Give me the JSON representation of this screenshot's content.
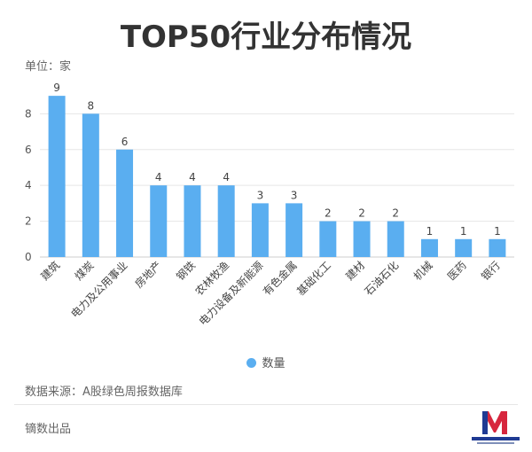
{
  "chart_data": {
    "type": "bar",
    "title": "TOP50行业分布情况",
    "unit_label": "单位：家",
    "categories": [
      "建筑",
      "煤炭",
      "电力及公用事业",
      "房地产",
      "钢铁",
      "农林牧渔",
      "电力设备及新能源",
      "有色金属",
      "基础化工",
      "建材",
      "石油石化",
      "机械",
      "医药",
      "银行"
    ],
    "series": [
      {
        "name": "数量",
        "values": [
          9,
          8,
          6,
          4,
          4,
          4,
          3,
          3,
          2,
          2,
          2,
          1,
          1,
          1
        ]
      }
    ],
    "yticks": [
      0,
      2,
      4,
      6,
      8
    ],
    "ylim": [
      0,
      9.6
    ],
    "xlabel": "",
    "ylabel": "",
    "grid": true,
    "legend_position": "bottom"
  },
  "colors": {
    "bar": "#5aaef0",
    "grid": "#e6e6e6",
    "axis": "#cccccc"
  },
  "footer": {
    "source": "数据来源：A股绿色周报数据库",
    "producer": "镝数出品"
  }
}
